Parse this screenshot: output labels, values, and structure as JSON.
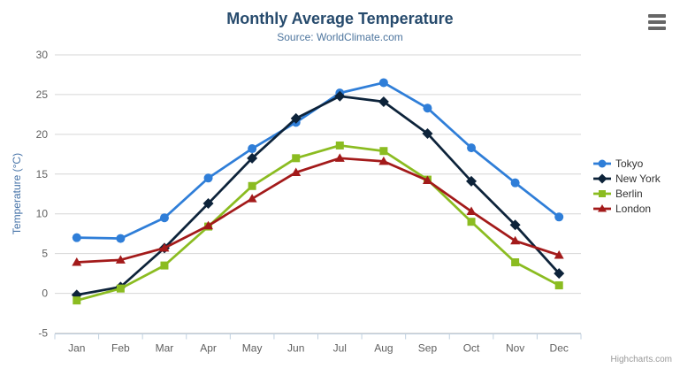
{
  "credits_label": "Highcharts.com",
  "icons": {
    "context_menu": "hamburger-menu-icon"
  },
  "chart_data": {
    "type": "line",
    "title": "Monthly Average Temperature",
    "subtitle": "Source: WorldClimate.com",
    "xlabel": "",
    "ylabel": "Temperature (°C)",
    "categories": [
      "Jan",
      "Feb",
      "Mar",
      "Apr",
      "May",
      "Jun",
      "Jul",
      "Aug",
      "Sep",
      "Oct",
      "Nov",
      "Dec"
    ],
    "ylim": [
      -5,
      30
    ],
    "yticks": [
      -5,
      0,
      5,
      10,
      15,
      20,
      25,
      30
    ],
    "grid": true,
    "legend_position": "right",
    "grid_color": "#d6d6d6",
    "axis_line_color": "#c0d0e0",
    "tick_label_color": "#606060",
    "series": [
      {
        "name": "Tokyo",
        "color": "#2f7ed8",
        "marker": "circle",
        "values": [
          7.0,
          6.9,
          9.5,
          14.5,
          18.2,
          21.5,
          25.2,
          26.5,
          23.3,
          18.3,
          13.9,
          9.6
        ]
      },
      {
        "name": "New York",
        "color": "#0d233a",
        "marker": "diamond",
        "values": [
          -0.2,
          0.8,
          5.7,
          11.3,
          17.0,
          22.0,
          24.8,
          24.1,
          20.1,
          14.1,
          8.6,
          2.5
        ]
      },
      {
        "name": "Berlin",
        "color": "#8bbc21",
        "marker": "square",
        "values": [
          -0.9,
          0.6,
          3.5,
          8.4,
          13.5,
          17.0,
          18.6,
          17.9,
          14.3,
          9.0,
          3.9,
          1.0
        ]
      },
      {
        "name": "London",
        "color": "#a31a1a",
        "marker": "triangle",
        "values": [
          3.9,
          4.2,
          5.7,
          8.5,
          11.9,
          15.2,
          17.0,
          16.6,
          14.2,
          10.3,
          6.6,
          4.8
        ]
      }
    ]
  }
}
